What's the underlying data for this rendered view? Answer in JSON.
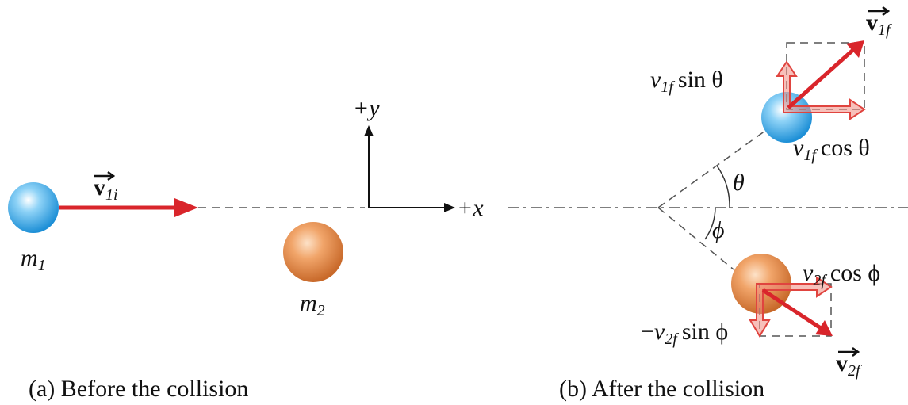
{
  "panel_a": {
    "caption": "(a) Before the collision",
    "velocity": {
      "symbol": "v",
      "subscript": "1i"
    },
    "mass_1": {
      "symbol": "m",
      "subscript": "1"
    },
    "mass_2": {
      "symbol": "m",
      "subscript": "2"
    }
  },
  "axes": {
    "y_label": "+y",
    "x_label": "+x"
  },
  "panel_b": {
    "caption": "(b) After the collision",
    "velocity_1f": {
      "symbol": "v",
      "subscript": "1f"
    },
    "velocity_2f": {
      "symbol": "v",
      "subscript": "2f"
    },
    "v1f_sin": {
      "symbol": "v",
      "subscript": "1f",
      "rest": "sin θ"
    },
    "v1f_cos": {
      "symbol": "v",
      "subscript": "1f",
      "rest": "cos θ"
    },
    "v2f_cos": {
      "symbol": "v",
      "subscript": "2f",
      "rest": "cos ϕ"
    },
    "v2f_sin": {
      "sign": "−",
      "symbol": "v",
      "subscript": "2f",
      "rest": "sin ϕ"
    },
    "angle_theta": "θ",
    "angle_phi": "ϕ"
  }
}
